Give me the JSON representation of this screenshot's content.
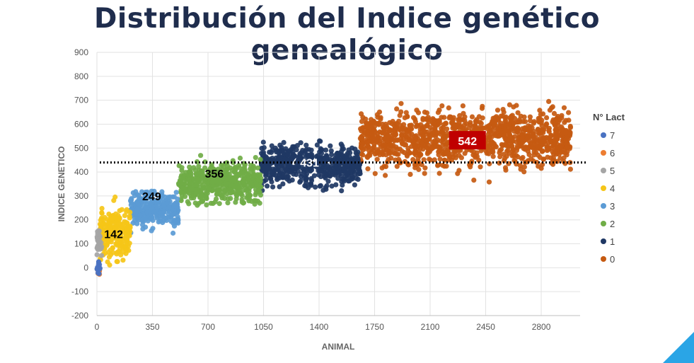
{
  "chart_data": {
    "type": "scatter",
    "title": "Distribución del Indice genético genealógico",
    "xlabel": "ANIMAL",
    "ylabel": "INDICE GENETICO",
    "xlim": [
      0,
      3045
    ],
    "ylim": [
      -200,
      900
    ],
    "xticks": [
      0,
      350,
      700,
      1050,
      1400,
      1750,
      2100,
      2450,
      2800
    ],
    "yticks": [
      -200,
      -100,
      0,
      100,
      200,
      300,
      400,
      500,
      600,
      700,
      800,
      900
    ],
    "grid": true,
    "reference_line": {
      "y": 440,
      "style": "dotted",
      "color": "#000000"
    },
    "legend": {
      "title": "N° Lact",
      "placement": "right"
    },
    "series": [
      {
        "name": "7",
        "color": "#4a72c2",
        "x_range": [
          0,
          20
        ],
        "mean": 0,
        "spread": 40,
        "count": 12
      },
      {
        "name": "6",
        "color": "#ed7d31",
        "x_range": [
          0,
          20
        ],
        "mean": -20,
        "spread": 30,
        "count": 6
      },
      {
        "name": "5",
        "color": "#a5a5a5",
        "x_range": [
          0,
          30
        ],
        "mean": 100,
        "spread": 80,
        "count": 25
      },
      {
        "name": "4",
        "color": "#f5c518",
        "x_range": [
          20,
          210
        ],
        "mean": 142,
        "spread": 110,
        "count": 240
      },
      {
        "name": "3",
        "color": "#5b9bd5",
        "x_range": [
          210,
          515
        ],
        "mean": 249,
        "spread": 80,
        "count": 300
      },
      {
        "name": "2",
        "color": "#70ad47",
        "x_range": [
          515,
          1035
        ],
        "mean": 356,
        "spread": 90,
        "count": 480
      },
      {
        "name": "1",
        "color": "#1f3864",
        "x_range": [
          1035,
          1660
        ],
        "mean": 431,
        "spread": 95,
        "count": 520
      },
      {
        "name": "0",
        "color": "#c55a11",
        "x_range": [
          1660,
          2985
        ],
        "mean": 542,
        "spread": 130,
        "count": 1200
      }
    ],
    "mean_labels": [
      {
        "text": "142",
        "x": 105,
        "y": 142,
        "color": "#000000",
        "box": ""
      },
      {
        "text": "249",
        "x": 345,
        "y": 300,
        "color": "#000000",
        "box": ""
      },
      {
        "text": "356",
        "x": 740,
        "y": 395,
        "color": "#000000",
        "box": ""
      },
      {
        "text": "431",
        "x": 1340,
        "y": 440,
        "color": "#ffffff",
        "box": ""
      },
      {
        "text": "542",
        "x": 2335,
        "y": 530,
        "color": "#ffffff",
        "box": "#c00000"
      }
    ]
  }
}
